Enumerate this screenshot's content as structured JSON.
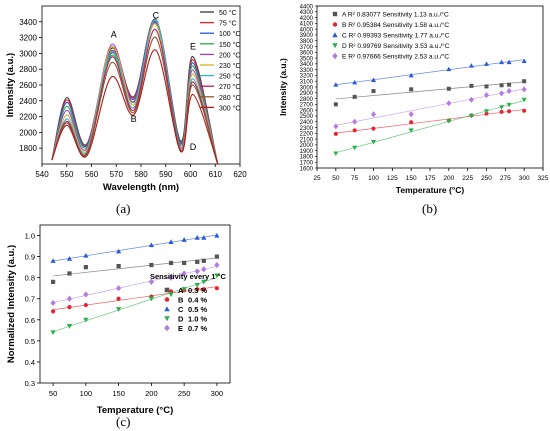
{
  "figure": {
    "panel_labels": [
      "(a)",
      "(b)",
      "(c)"
    ]
  },
  "chart_data": [
    {
      "type": "line",
      "xlabel": "Wavelength (nm)",
      "ylabel": "Intensity (a.u.)",
      "xlim": [
        540,
        620
      ],
      "ylim": [
        1600,
        3600
      ],
      "xticks": [
        540,
        550,
        560,
        570,
        580,
        590,
        600,
        610,
        620
      ],
      "yticks": [
        1800,
        2000,
        2200,
        2400,
        2600,
        2800,
        3000,
        3200,
        3400
      ],
      "legend_position": "top-right",
      "peak_labels": [
        {
          "text": "A",
          "x": 569,
          "y": 3200
        },
        {
          "text": "B",
          "x": 577,
          "y": 2130
        },
        {
          "text": "C",
          "x": 586,
          "y": 3440
        },
        {
          "text": "D",
          "x": 601,
          "y": 1780
        },
        {
          "text": "E",
          "x": 601,
          "y": 3050
        }
      ],
      "series": [
        {
          "name": "50 °C",
          "color": "#3a3a3a",
          "values": [
            1650,
            2440,
            1850,
            3060,
            2450,
            3430,
            1890,
            2960,
            1600
          ]
        },
        {
          "name": "75 °C",
          "color": "#e8232d",
          "values": [
            1650,
            2410,
            1840,
            3030,
            2440,
            3420,
            1870,
            2920,
            1600
          ]
        },
        {
          "name": "100 °C",
          "color": "#2a5ad8",
          "values": [
            1650,
            2380,
            1830,
            3000,
            2420,
            3400,
            1860,
            2880,
            1600
          ]
        },
        {
          "name": "150 °C",
          "color": "#27b04a",
          "values": [
            1650,
            2330,
            1810,
            2970,
            2390,
            3380,
            1840,
            2840,
            1600
          ]
        },
        {
          "name": "200 °C",
          "color": "#a63ed6",
          "values": [
            1650,
            2280,
            1790,
            3110,
            2380,
            3390,
            1810,
            2790,
            1600
          ]
        },
        {
          "name": "230 °C",
          "color": "#d4b326",
          "values": [
            1650,
            2220,
            1770,
            3080,
            2350,
            3370,
            1790,
            2740,
            1600
          ]
        },
        {
          "name": "250 °C",
          "color": "#2fb5c8",
          "values": [
            1650,
            2170,
            1750,
            3020,
            2310,
            3420,
            1780,
            2680,
            1600
          ]
        },
        {
          "name": "270 °C",
          "color": "#c2185b",
          "values": [
            1650,
            2140,
            1730,
            2950,
            2280,
            3300,
            1770,
            2640,
            1600
          ]
        },
        {
          "name": "280 °C",
          "color": "#8b5a2b",
          "values": [
            1650,
            2120,
            1720,
            2880,
            2250,
            3200,
            1760,
            2600,
            1600
          ]
        },
        {
          "name": "300 °C",
          "color": "#b01a1a",
          "values": [
            1650,
            2090,
            1700,
            2700,
            2220,
            3040,
            1760,
            2480,
            1600
          ]
        }
      ],
      "key_x": [
        544,
        550,
        558,
        568,
        577,
        586,
        596,
        601,
        611
      ]
    },
    {
      "type": "scatter",
      "xlabel": "Temperature (°C)",
      "ylabel": "Intensity (a.u.)",
      "xlim": [
        25,
        325
      ],
      "ylim": [
        1600,
        4400
      ],
      "xticks": [
        25,
        50,
        75,
        100,
        125,
        150,
        175,
        200,
        225,
        250,
        275,
        300,
        325
      ],
      "yticks": [
        1600,
        1700,
        1800,
        1900,
        2000,
        2100,
        2200,
        2300,
        2400,
        2500,
        2600,
        2700,
        2800,
        2900,
        3000,
        3100,
        3200,
        3300,
        3400,
        3500,
        3600,
        3700,
        3800,
        3900,
        4000,
        4100,
        4200,
        4300,
        4400
      ],
      "legend_position": "top-left",
      "x": [
        50,
        75,
        100,
        150,
        200,
        230,
        250,
        270,
        280,
        300
      ],
      "series": [
        {
          "name": "A",
          "legend": "A R² 0.83077 Sensitivity 1.13 a.u./°C",
          "marker": "square",
          "color": "#555555",
          "values": [
            2700,
            2830,
            2930,
            2960,
            2970,
            3020,
            3010,
            3030,
            3040,
            3100
          ]
        },
        {
          "name": "B",
          "legend": "B R² 0.95384 Sensitivity 1.58 a.u./°C",
          "marker": "circle",
          "color": "#e8232d",
          "values": [
            2190,
            2250,
            2280,
            2390,
            2420,
            2510,
            2540,
            2570,
            2580,
            2590
          ]
        },
        {
          "name": "C",
          "legend": "C R² 0.99393 Sensitivity 1.77 a.u./°C",
          "marker": "triangle-up",
          "color": "#2a5ad8",
          "values": [
            3040,
            3080,
            3120,
            3200,
            3310,
            3370,
            3400,
            3430,
            3430,
            3450
          ]
        },
        {
          "name": "D",
          "legend": "D R² 0.99769 Sensitivity 3.53 a.u./°C",
          "marker": "triangle-down",
          "color": "#27b04a",
          "values": [
            1850,
            1950,
            2050,
            2250,
            2410,
            2500,
            2580,
            2650,
            2690,
            2780
          ]
        },
        {
          "name": "E",
          "legend": "E R² 0.97666 Sensitivity 2.53 a.u./°C",
          "marker": "diamond",
          "color": "#b57be0",
          "values": [
            2320,
            2400,
            2530,
            2530,
            2720,
            2780,
            2860,
            2890,
            2930,
            2960
          ]
        }
      ]
    },
    {
      "type": "scatter",
      "xlabel": "Temperature (°C)",
      "ylabel": "Normalized Intensity (a.u.)",
      "xlim": [
        30,
        320
      ],
      "ylim": [
        0.3,
        1.05
      ],
      "xticks": [
        50,
        100,
        150,
        200,
        250,
        300
      ],
      "yticks": [
        0.3,
        0.4,
        0.5,
        0.6,
        0.7,
        0.8,
        0.9,
        1.0
      ],
      "legend_position": "bottom-right",
      "legend_title": "Sensitivity every 1 °C",
      "x": [
        50,
        75,
        100,
        150,
        200,
        230,
        250,
        270,
        280,
        300
      ],
      "series": [
        {
          "name": "A",
          "legend_value": "0.3 %",
          "marker": "square",
          "color": "#555555",
          "values": [
            0.78,
            0.82,
            0.85,
            0.855,
            0.86,
            0.87,
            0.87,
            0.875,
            0.88,
            0.9
          ]
        },
        {
          "name": "B",
          "legend_value": "0.4 %",
          "marker": "circle",
          "color": "#e8232d",
          "values": [
            0.64,
            0.66,
            0.67,
            0.7,
            0.71,
            0.735,
            0.74,
            0.745,
            0.745,
            0.75
          ]
        },
        {
          "name": "C",
          "legend_value": "0.5 %",
          "marker": "triangle-up",
          "color": "#2a5ad8",
          "values": [
            0.88,
            0.89,
            0.905,
            0.925,
            0.955,
            0.97,
            0.98,
            0.99,
            0.99,
            1.0
          ]
        },
        {
          "name": "D",
          "legend_value": "1.0 %",
          "marker": "triangle-down",
          "color": "#27b04a",
          "values": [
            0.54,
            0.57,
            0.6,
            0.65,
            0.7,
            0.72,
            0.745,
            0.765,
            0.78,
            0.81
          ]
        },
        {
          "name": "E",
          "legend_value": "0.7 %",
          "marker": "diamond",
          "color": "#b57be0",
          "values": [
            0.68,
            0.7,
            0.72,
            0.75,
            0.78,
            0.8,
            0.82,
            0.83,
            0.84,
            0.86
          ]
        }
      ]
    }
  ]
}
